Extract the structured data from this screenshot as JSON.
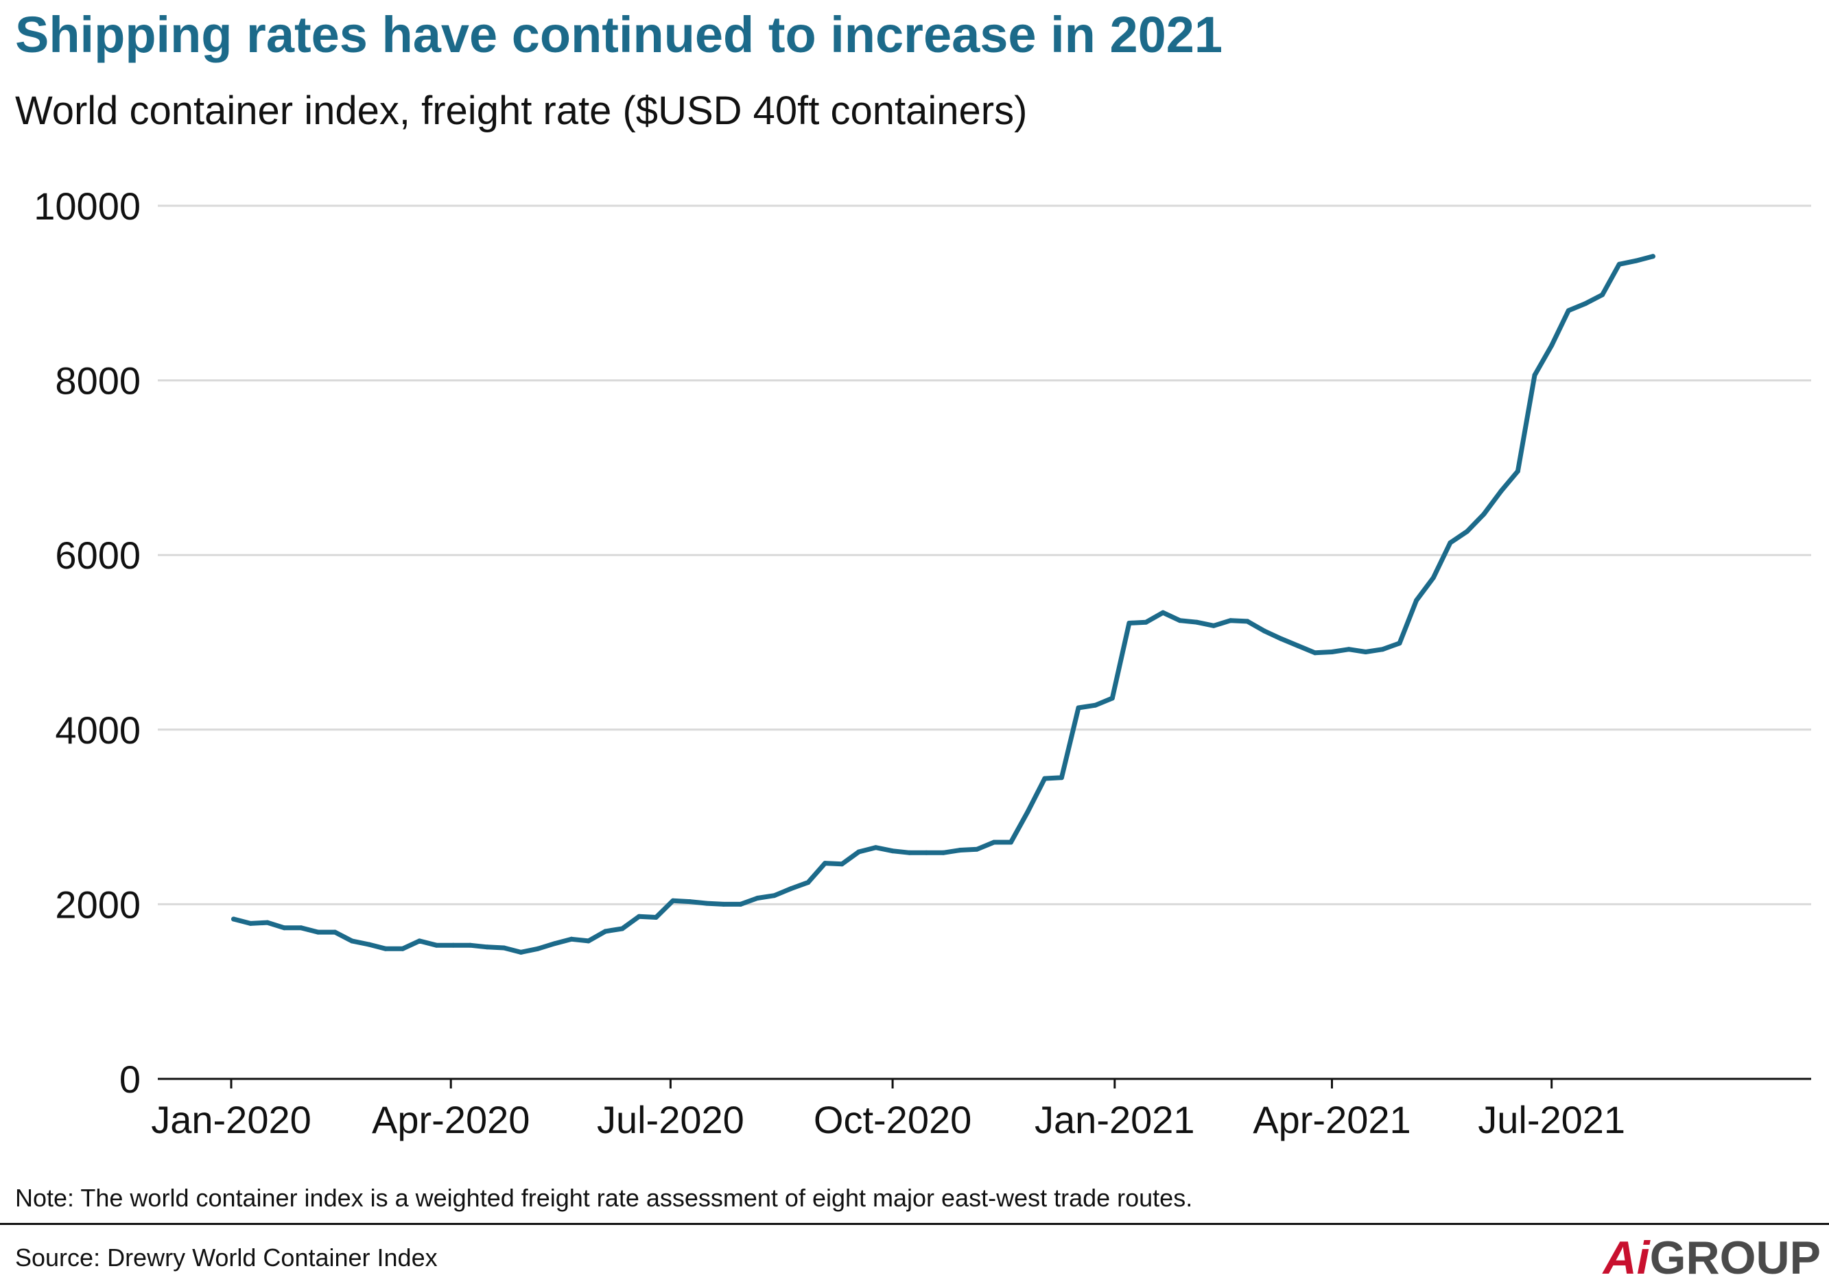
{
  "title": "Shipping rates have continued to increase in 2021",
  "subtitle": "World container index, freight rate ($USD 40ft containers)",
  "note": "Note: The world container index is a weighted freight rate assessment of eight major east-west trade routes.",
  "source": "Source: Drewry World Container Index",
  "logo": {
    "ai": "Ai",
    "group": "GROUP"
  },
  "colors": {
    "line": "#1c6a8a",
    "grid": "#d9d9d9",
    "title": "#1c6a8a",
    "logo_accent": "#c8102e"
  },
  "chart_data": {
    "type": "line",
    "title": "Shipping rates have continued to increase in 2021",
    "subtitle": "World container index, freight rate ($USD 40ft containers)",
    "xlabel": "",
    "ylabel": "",
    "ylim": [
      0,
      10000
    ],
    "yticks": [
      0,
      2000,
      4000,
      6000,
      8000,
      10000
    ],
    "xlim": [
      "2020-01-01",
      "2021-10-08"
    ],
    "xticks": [
      {
        "date": "2020-01-01",
        "label": "Jan-2020"
      },
      {
        "date": "2020-04-01",
        "label": "Apr-2020"
      },
      {
        "date": "2020-07-01",
        "label": "Jul-2020"
      },
      {
        "date": "2020-10-01",
        "label": "Oct-2020"
      },
      {
        "date": "2021-01-01",
        "label": "Jan-2021"
      },
      {
        "date": "2021-04-01",
        "label": "Apr-2021"
      },
      {
        "date": "2021-07-01",
        "label": "Jul-2021"
      }
    ],
    "grid": "horizontal",
    "legend": "none",
    "series": [
      {
        "x": [
          "2020-01-02",
          "2020-01-09",
          "2020-01-16",
          "2020-01-23",
          "2020-01-30",
          "2020-02-06",
          "2020-02-13",
          "2020-02-20",
          "2020-02-27",
          "2020-03-05",
          "2020-03-12",
          "2020-03-19",
          "2020-03-26",
          "2020-04-02",
          "2020-04-09",
          "2020-04-16",
          "2020-04-23",
          "2020-04-30",
          "2020-05-07",
          "2020-05-14",
          "2020-05-21",
          "2020-05-28",
          "2020-06-04",
          "2020-06-11",
          "2020-06-18",
          "2020-06-25",
          "2020-07-02",
          "2020-07-09",
          "2020-07-16",
          "2020-07-23",
          "2020-07-30",
          "2020-08-06",
          "2020-08-13",
          "2020-08-20",
          "2020-08-27",
          "2020-09-03",
          "2020-09-10",
          "2020-09-17",
          "2020-09-24",
          "2020-10-01",
          "2020-10-08",
          "2020-10-15",
          "2020-10-22",
          "2020-10-29",
          "2020-11-05",
          "2020-11-12",
          "2020-11-19",
          "2020-11-26",
          "2020-12-03",
          "2020-12-10",
          "2020-12-17",
          "2020-12-24",
          "2020-12-31",
          "2021-01-07",
          "2021-01-14",
          "2021-01-21",
          "2021-01-28",
          "2021-02-04",
          "2021-02-11",
          "2021-02-18",
          "2021-02-25",
          "2021-03-04",
          "2021-03-11",
          "2021-03-18",
          "2021-03-25",
          "2021-04-01",
          "2021-04-08",
          "2021-04-15",
          "2021-04-22",
          "2021-04-29",
          "2021-05-06",
          "2021-05-13",
          "2021-05-20",
          "2021-05-27",
          "2021-06-03",
          "2021-06-10",
          "2021-06-17",
          "2021-06-24",
          "2021-07-01",
          "2021-07-08",
          "2021-07-15",
          "2021-07-22",
          "2021-07-29",
          "2021-08-05",
          "2021-08-12"
        ],
        "values": [
          1830,
          1780,
          1790,
          1730,
          1730,
          1680,
          1680,
          1580,
          1540,
          1490,
          1490,
          1580,
          1530,
          1530,
          1530,
          1510,
          1500,
          1450,
          1490,
          1550,
          1600,
          1580,
          1690,
          1720,
          1860,
          1850,
          2040,
          2030,
          2010,
          2000,
          2000,
          2070,
          2100,
          2180,
          2250,
          2470,
          2460,
          2600,
          2650,
          2610,
          2590,
          2590,
          2590,
          2620,
          2630,
          2710,
          2710,
          3060,
          3440,
          3450,
          4250,
          4280,
          4360,
          5220,
          5230,
          5340,
          5250,
          5230,
          5190,
          5250,
          5240,
          5130,
          5040,
          4960,
          4880,
          4890,
          4920,
          4890,
          4920,
          4990,
          5480,
          5740,
          6140,
          6270,
          6470,
          6730,
          6960,
          8060,
          8400,
          8800,
          8880,
          8980,
          9330,
          9370,
          9420
        ]
      }
    ]
  }
}
